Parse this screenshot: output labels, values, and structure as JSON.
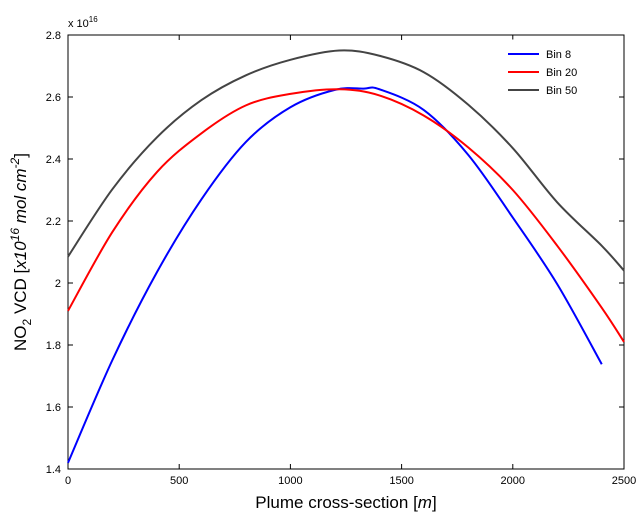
{
  "chart_data": {
    "type": "line",
    "title": "",
    "xlabel": {
      "main": "Plume cross-section ",
      "unit_open": "[",
      "unit": "m",
      "unit_close": "]"
    },
    "ylabel": {
      "pre": "NO",
      "sub": "2",
      "mid": " VCD [",
      "unit_base": "x10",
      "unit_exp": "16",
      "unit_tail": " mol cm",
      "unit_exp2": "-2",
      "close": "]"
    },
    "y_multiplier": {
      "base": "x 10",
      "exp": "16"
    },
    "xlim": [
      0,
      2500
    ],
    "ylim": [
      1.4,
      2.8
    ],
    "xticks": [
      0,
      500,
      1000,
      1500,
      2000,
      2500
    ],
    "xtick_labels": [
      "0",
      "500",
      "1000",
      "1500",
      "2000",
      "2500"
    ],
    "yticks": [
      1.4,
      1.6,
      1.8,
      2.0,
      2.2,
      2.4,
      2.6,
      2.8
    ],
    "ytick_labels": [
      "1.4",
      "1.6",
      "1.8",
      "2",
      "2.2",
      "2.4",
      "2.6",
      "2.8"
    ],
    "grid": false,
    "legend_position": "top-right",
    "series": [
      {
        "name": "Bin 8",
        "color": "#0000ff",
        "x": [
          0,
          200,
          400,
          600,
          800,
          1000,
          1200,
          1330,
          1400,
          1600,
          1800,
          2000,
          2200,
          2400
        ],
        "y": [
          1.42,
          1.752,
          2.035,
          2.27,
          2.455,
          2.567,
          2.623,
          2.627,
          2.625,
          2.558,
          2.413,
          2.211,
          1.996,
          1.738
        ]
      },
      {
        "name": "Bin 20",
        "color": "#ff0000",
        "x": [
          0,
          200,
          400,
          600,
          800,
          1000,
          1220,
          1400,
          1600,
          1800,
          2000,
          2200,
          2400,
          2500
        ],
        "y": [
          1.91,
          2.165,
          2.358,
          2.483,
          2.573,
          2.61,
          2.625,
          2.605,
          2.54,
          2.437,
          2.3,
          2.12,
          1.92,
          1.81
        ]
      },
      {
        "name": "Bin 50",
        "color": "#444444",
        "x": [
          0,
          200,
          400,
          600,
          800,
          1000,
          1220,
          1400,
          1600,
          1800,
          2000,
          2200,
          2400,
          2500
        ],
        "y": [
          2.085,
          2.303,
          2.47,
          2.59,
          2.67,
          2.72,
          2.75,
          2.733,
          2.68,
          2.575,
          2.435,
          2.26,
          2.12,
          2.04
        ]
      }
    ]
  }
}
